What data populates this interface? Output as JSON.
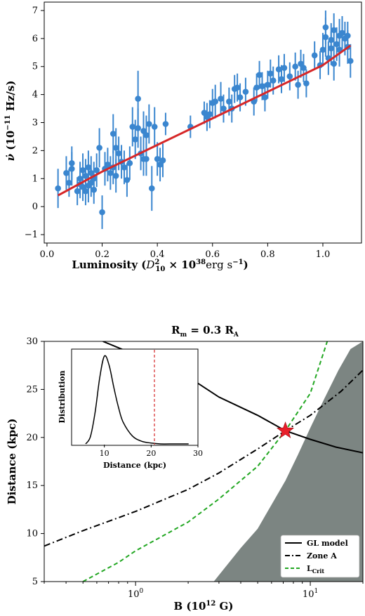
{
  "chart_data": [
    {
      "type": "scatter",
      "xlabel": "Luminosity",
      "xlabel_unit": "(D_10^2 × 10^38 erg s^-1)",
      "ylabel": "ν̇ (10^-11 Hz/s)",
      "xlim": [
        -0.01,
        1.14
      ],
      "ylim": [
        -1.3,
        7.3
      ],
      "xticks": [
        "0.0",
        "0.2",
        "0.4",
        "0.6",
        "0.8",
        "1.0"
      ],
      "yticks": [
        "−1",
        "0",
        "1",
        "2",
        "3",
        "4",
        "5",
        "6",
        "7"
      ],
      "point_color": "#3a86cf",
      "fit_color": "#d62728",
      "points": [
        [
          0.04,
          0.65,
          0.7
        ],
        [
          0.07,
          1.2,
          0.6
        ],
        [
          0.08,
          0.85,
          0.5
        ],
        [
          0.09,
          1.35,
          0.6
        ],
        [
          0.09,
          1.55,
          0.6
        ],
        [
          0.11,
          0.55,
          0.5
        ],
        [
          0.12,
          0.8,
          0.5
        ],
        [
          0.12,
          1.0,
          0.6
        ],
        [
          0.13,
          0.7,
          0.5
        ],
        [
          0.13,
          1.3,
          0.6
        ],
        [
          0.14,
          0.55,
          0.5
        ],
        [
          0.14,
          1.1,
          0.6
        ],
        [
          0.15,
          0.75,
          0.6
        ],
        [
          0.15,
          1.4,
          0.6
        ],
        [
          0.16,
          0.85,
          0.5
        ],
        [
          0.16,
          1.2,
          0.6
        ],
        [
          0.17,
          1.0,
          0.6
        ],
        [
          0.17,
          0.6,
          0.5
        ],
        [
          0.18,
          1.3,
          0.6
        ],
        [
          0.19,
          2.1,
          0.7
        ],
        [
          0.2,
          -0.2,
          0.6
        ],
        [
          0.21,
          1.35,
          0.6
        ],
        [
          0.22,
          1.5,
          0.6
        ],
        [
          0.23,
          1.2,
          0.6
        ],
        [
          0.24,
          1.4,
          0.6
        ],
        [
          0.24,
          2.6,
          0.7
        ],
        [
          0.25,
          1.1,
          0.6
        ],
        [
          0.25,
          2.1,
          0.7
        ],
        [
          0.26,
          1.9,
          0.6
        ],
        [
          0.27,
          1.6,
          0.6
        ],
        [
          0.28,
          1.4,
          0.6
        ],
        [
          0.29,
          0.95,
          0.6
        ],
        [
          0.3,
          1.55,
          0.6
        ],
        [
          0.31,
          2.85,
          0.7
        ],
        [
          0.32,
          2.4,
          0.7
        ],
        [
          0.33,
          3.85,
          1.0
        ],
        [
          0.33,
          2.8,
          0.7
        ],
        [
          0.34,
          1.9,
          0.6
        ],
        [
          0.35,
          2.7,
          0.7
        ],
        [
          0.35,
          1.7,
          0.6
        ],
        [
          0.36,
          2.55,
          0.7
        ],
        [
          0.36,
          1.7,
          0.6
        ],
        [
          0.37,
          2.95,
          0.7
        ],
        [
          0.38,
          0.65,
          0.8
        ],
        [
          0.39,
          2.85,
          0.7
        ],
        [
          0.4,
          1.7,
          0.6
        ],
        [
          0.41,
          1.5,
          0.6
        ],
        [
          0.42,
          1.65,
          0.6
        ],
        [
          0.43,
          2.95,
          0.4
        ],
        [
          0.52,
          2.85,
          0.4
        ],
        [
          0.57,
          3.35,
          0.4
        ],
        [
          0.58,
          3.2,
          0.5
        ],
        [
          0.59,
          3.3,
          0.5
        ],
        [
          0.6,
          3.7,
          0.5
        ],
        [
          0.61,
          3.75,
          0.6
        ],
        [
          0.63,
          3.85,
          0.6
        ],
        [
          0.64,
          3.5,
          0.5
        ],
        [
          0.66,
          3.75,
          0.5
        ],
        [
          0.67,
          3.5,
          0.5
        ],
        [
          0.68,
          4.2,
          0.5
        ],
        [
          0.69,
          4.25,
          0.5
        ],
        [
          0.7,
          3.9,
          0.5
        ],
        [
          0.72,
          4.1,
          0.5
        ],
        [
          0.75,
          3.75,
          0.5
        ],
        [
          0.76,
          4.25,
          0.5
        ],
        [
          0.77,
          4.7,
          0.5
        ],
        [
          0.78,
          4.3,
          0.5
        ],
        [
          0.79,
          3.9,
          0.5
        ],
        [
          0.8,
          4.35,
          0.5
        ],
        [
          0.81,
          4.75,
          0.5
        ],
        [
          0.82,
          4.5,
          0.5
        ],
        [
          0.84,
          4.9,
          0.5
        ],
        [
          0.85,
          4.55,
          0.5
        ],
        [
          0.86,
          4.95,
          0.5
        ],
        [
          0.88,
          4.65,
          0.5
        ],
        [
          0.9,
          5.0,
          0.5
        ],
        [
          0.91,
          4.35,
          0.5
        ],
        [
          0.92,
          5.1,
          0.5
        ],
        [
          0.93,
          4.95,
          0.5
        ],
        [
          0.94,
          4.4,
          0.5
        ],
        [
          0.97,
          5.4,
          0.5
        ],
        [
          0.99,
          5.05,
          0.5
        ],
        [
          1.0,
          5.6,
          0.6
        ],
        [
          1.01,
          6.05,
          0.7
        ],
        [
          1.01,
          6.4,
          0.6
        ],
        [
          1.02,
          5.3,
          0.6
        ],
        [
          1.03,
          5.65,
          0.6
        ],
        [
          1.03,
          5.95,
          0.6
        ],
        [
          1.04,
          6.3,
          0.6
        ],
        [
          1.04,
          5.1,
          0.6
        ],
        [
          1.05,
          5.8,
          0.6
        ],
        [
          1.06,
          5.6,
          0.6
        ],
        [
          1.07,
          6.2,
          0.6
        ],
        [
          1.08,
          6.0,
          0.6
        ],
        [
          1.09,
          5.7,
          0.6
        ],
        [
          1.1,
          5.2,
          0.6
        ],
        [
          1.09,
          6.1,
          0.5
        ],
        [
          1.06,
          6.1,
          0.6
        ]
      ],
      "fit": {
        "x": [
          0.04,
          0.2,
          0.4,
          0.6,
          0.8,
          1.0,
          1.1
        ],
        "y": [
          0.4,
          1.25,
          2.2,
          3.15,
          4.1,
          5.05,
          5.75
        ]
      }
    },
    {
      "type": "line",
      "title": "R_m = 0.3 R_A",
      "xlabel": "B (10^12 G)",
      "ylabel": "Distance (kpc)",
      "xscale": "log",
      "xlim": [
        0.3,
        20
      ],
      "ylim": [
        5,
        30
      ],
      "yticks": [
        "5",
        "10",
        "15",
        "20",
        "25",
        "30"
      ],
      "xticks": [
        "10^0",
        "10^1"
      ],
      "legend_position": "lower-right",
      "series": [
        {
          "name": "GL model",
          "style": "solid",
          "color": "#000000",
          "x": [
            0.65,
            1,
            2,
            3,
            5,
            7.2,
            10,
            14,
            20
          ],
          "y": [
            30,
            28.6,
            26.3,
            24.2,
            22.3,
            20.7,
            19.8,
            19.0,
            18.4
          ]
        },
        {
          "name": "Zone A",
          "style": "dashdot",
          "color": "#000000",
          "x": [
            0.3,
            0.5,
            1,
            2,
            3,
            5,
            7.2,
            10,
            15,
            20
          ],
          "y": [
            8.7,
            10.3,
            12.3,
            14.6,
            16.3,
            18.8,
            20.7,
            22.3,
            24.8,
            27.0
          ]
        },
        {
          "name": "L_Crit",
          "style": "dashed",
          "color": "#22a722",
          "x": [
            0.5,
            0.8,
            1,
            2,
            3,
            5,
            7.2,
            10,
            12.5
          ],
          "y": [
            5,
            7.0,
            8.2,
            11.2,
            13.6,
            17.0,
            20.7,
            24.6,
            30
          ]
        }
      ],
      "shaded_region": {
        "color": "#7c8582",
        "edge_x": [
          2.8,
          4,
          5,
          6,
          7.2,
          8.5,
          10,
          12,
          14.5,
          17,
          20
        ],
        "edge_y": [
          5,
          8.5,
          10.5,
          13,
          15.5,
          18.2,
          21,
          24,
          27,
          29.2,
          30
        ]
      },
      "marker": {
        "x": 7.2,
        "y": 20.7,
        "color": "#e8202a",
        "shape": "star"
      },
      "inset": {
        "xlabel": "Distance (kpc)",
        "ylabel": "Distribution",
        "xlim": [
          3,
          30
        ],
        "xticks": [
          "10",
          "20",
          "30"
        ],
        "curve": {
          "x": [
            6,
            7,
            8,
            9,
            10,
            11,
            12,
            13,
            14,
            16,
            18,
            20,
            22,
            25,
            28
          ],
          "y": [
            0,
            0.08,
            0.35,
            0.75,
            1.0,
            0.9,
            0.65,
            0.42,
            0.25,
            0.09,
            0.03,
            0.01,
            0,
            0,
            0
          ]
        },
        "vline_x": 20.7,
        "vline_color": "#d62728"
      }
    }
  ]
}
